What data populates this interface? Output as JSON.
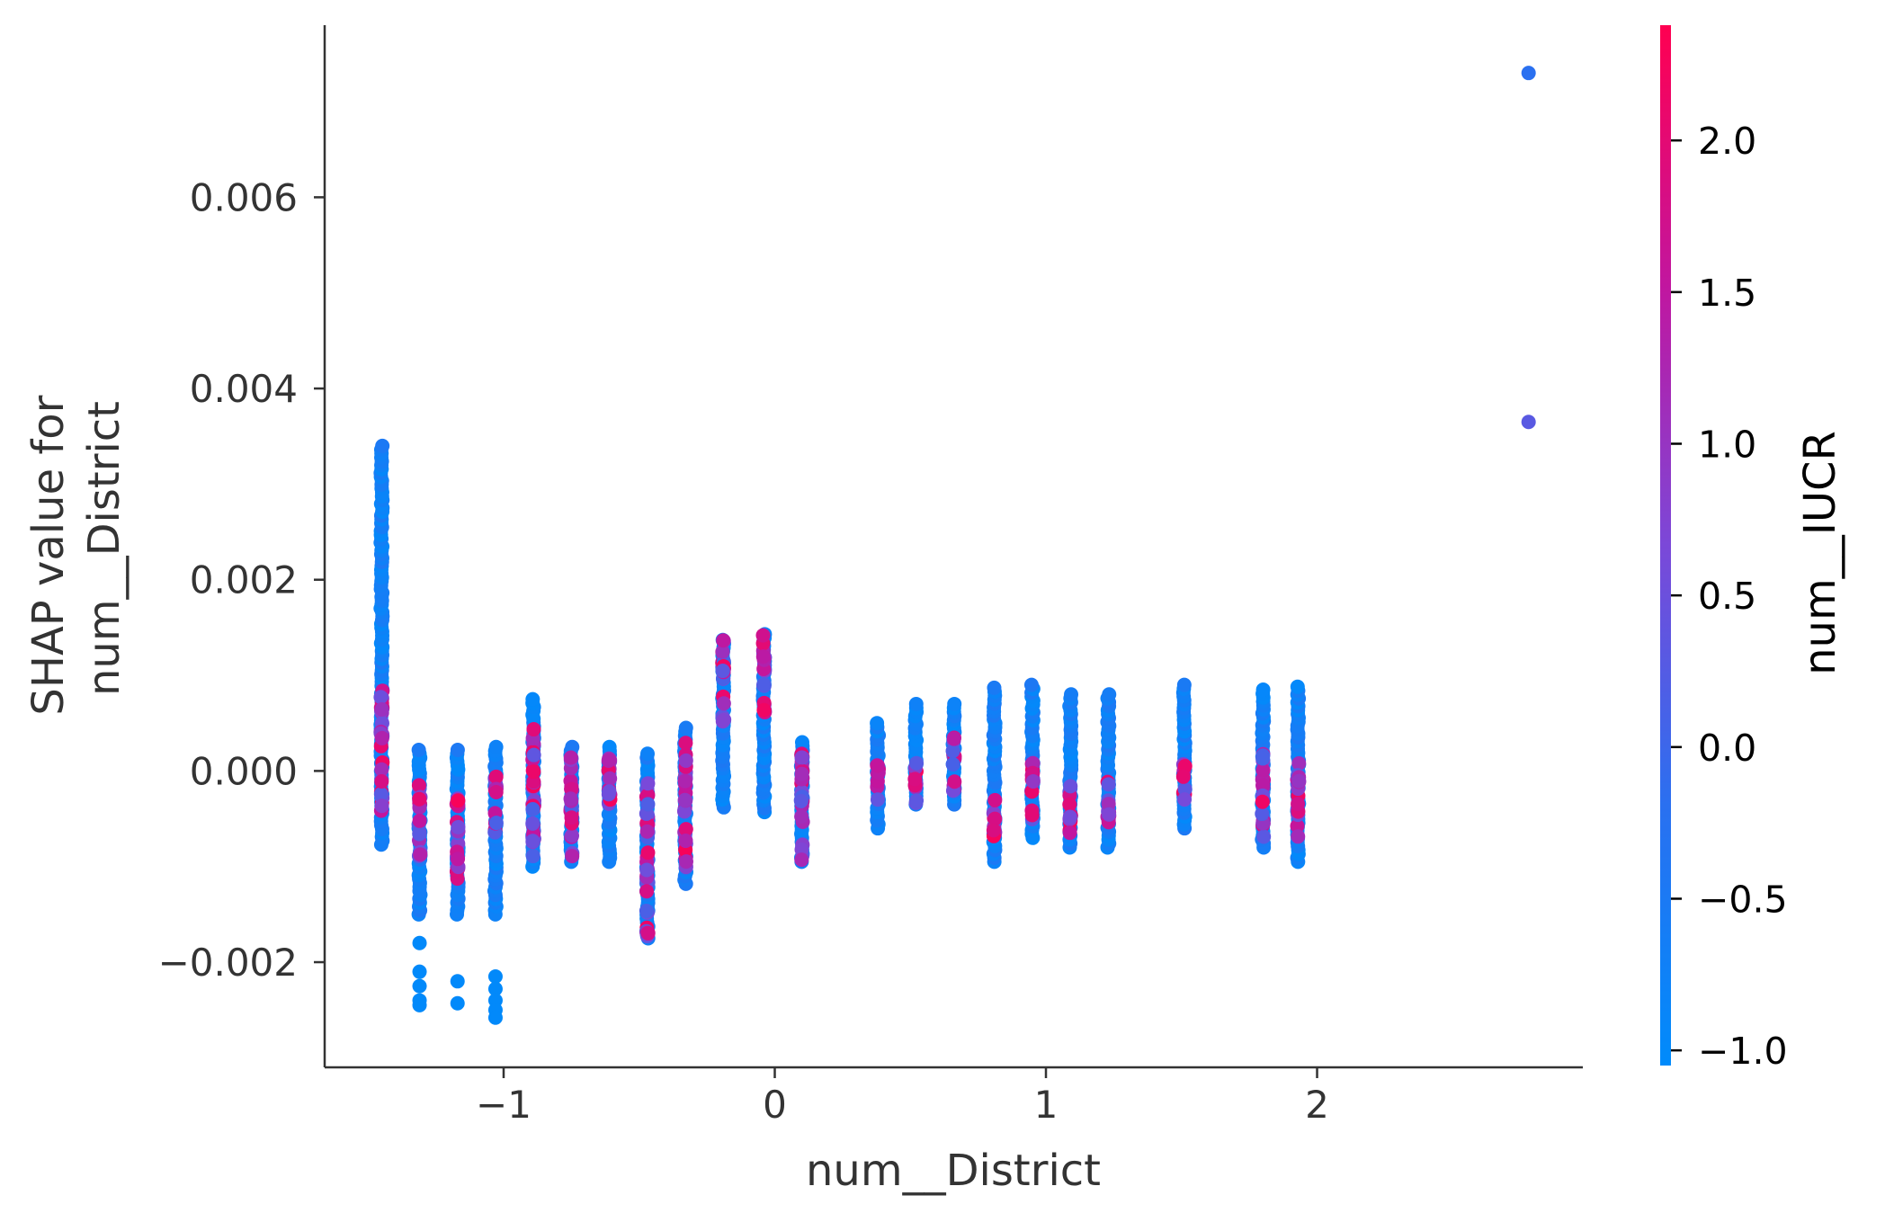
{
  "chart_data": {
    "type": "scatter",
    "xlabel": "num__District",
    "ylabel_lines": [
      "SHAP value for",
      "num__District"
    ],
    "xlim": [
      -1.66,
      2.98
    ],
    "ylim": [
      -0.0031,
      0.0078
    ],
    "x_ticks": [
      {
        "value": -1,
        "label": "−1"
      },
      {
        "value": 0,
        "label": "0"
      },
      {
        "value": 1,
        "label": "1"
      },
      {
        "value": 2,
        "label": "2"
      }
    ],
    "y_ticks": [
      {
        "value": -0.002,
        "label": "−0.002"
      },
      {
        "value": 0.0,
        "label": "0.000"
      },
      {
        "value": 0.002,
        "label": "0.002"
      },
      {
        "value": 0.004,
        "label": "0.004"
      },
      {
        "value": 0.006,
        "label": "0.006"
      }
    ],
    "colorbar": {
      "label": "num__IUCR",
      "range": [
        -1.05,
        2.38
      ],
      "ticks": [
        {
          "value": -1.0,
          "label": "−1.0"
        },
        {
          "value": -0.5,
          "label": "−0.5"
        },
        {
          "value": 0.0,
          "label": "0.0"
        },
        {
          "value": 0.5,
          "label": "0.5"
        },
        {
          "value": 1.0,
          "label": "1.0"
        },
        {
          "value": 1.5,
          "label": "1.5"
        },
        {
          "value": 2.0,
          "label": "2.0"
        }
      ],
      "colormap": [
        "#008bfb",
        "#2a70f0",
        "#7b48d8",
        "#c1169f",
        "#ff0051"
      ]
    },
    "columns": [
      {
        "x": -1.45,
        "ymin": -0.00077,
        "ymax": 0.0034,
        "hi_min": -0.00045,
        "hi_max": 0.0009
      },
      {
        "x": -1.31,
        "ymin": -0.0015,
        "ymax": 0.00022,
        "hi_min": -0.0009,
        "hi_max": -0.0001
      },
      {
        "x": -1.17,
        "ymin": -0.0015,
        "ymax": 0.00022,
        "hi_min": -0.0012,
        "hi_max": -0.0002
      },
      {
        "x": -1.03,
        "ymin": -0.0015,
        "ymax": 0.00025,
        "hi_min": -0.0007,
        "hi_max": 0.0
      },
      {
        "x": -0.89,
        "ymin": -0.001,
        "ymax": 0.00075,
        "hi_min": -0.001,
        "hi_max": 0.0005
      },
      {
        "x": -0.75,
        "ymin": -0.00095,
        "ymax": 0.00025,
        "hi_min": -0.0009,
        "hi_max": 0.0002
      },
      {
        "x": -0.61,
        "ymin": -0.00095,
        "ymax": 0.00025,
        "hi_min": -0.0005,
        "hi_max": 0.0002
      },
      {
        "x": -0.47,
        "ymin": -0.00175,
        "ymax": 0.00018,
        "hi_min": -0.00175,
        "hi_max": -0.0001
      },
      {
        "x": -0.33,
        "ymin": -0.00118,
        "ymax": 0.00045,
        "hi_min": -0.0011,
        "hi_max": 0.0003
      },
      {
        "x": -0.19,
        "ymin": -0.00038,
        "ymax": 0.00137,
        "hi_min": 0.0004,
        "hi_max": 0.00137
      },
      {
        "x": -0.04,
        "ymin": -0.00043,
        "ymax": 0.00143,
        "hi_min": 0.0006,
        "hi_max": 0.00143
      },
      {
        "x": 0.1,
        "ymin": -0.00095,
        "ymax": 0.0003,
        "hi_min": -0.00095,
        "hi_max": 0.0003
      },
      {
        "x": 0.38,
        "ymin": -0.0006,
        "ymax": 0.0005,
        "hi_min": -0.0003,
        "hi_max": 0.0001
      },
      {
        "x": 0.52,
        "ymin": -0.00035,
        "ymax": 0.0007,
        "hi_min": -0.00035,
        "hi_max": 0.0001
      },
      {
        "x": 0.66,
        "ymin": -0.00035,
        "ymax": 0.0007,
        "hi_min": -0.0003,
        "hi_max": 0.00035
      },
      {
        "x": 0.81,
        "ymin": -0.00095,
        "ymax": 0.00087,
        "hi_min": -0.0007,
        "hi_max": -0.0002
      },
      {
        "x": 0.95,
        "ymin": -0.0007,
        "ymax": 0.0009,
        "hi_min": -0.0006,
        "hi_max": 0.0001
      },
      {
        "x": 1.09,
        "ymin": -0.0008,
        "ymax": 0.0008,
        "hi_min": -0.0007,
        "hi_max": -0.0001
      },
      {
        "x": 1.23,
        "ymin": -0.0008,
        "ymax": 0.0008,
        "hi_min": -0.0006,
        "hi_max": -0.0001
      },
      {
        "x": 1.51,
        "ymin": -0.0006,
        "ymax": 0.0009,
        "hi_min": -0.0003,
        "hi_max": 0.0001
      },
      {
        "x": 1.8,
        "ymin": -0.0008,
        "ymax": 0.00085,
        "hi_min": -0.0007,
        "hi_max": 0.0002
      },
      {
        "x": 1.93,
        "ymin": -0.00095,
        "ymax": 0.00088,
        "hi_min": -0.0007,
        "hi_max": 0.0001
      }
    ],
    "extra_points": [
      {
        "x": 2.78,
        "y": 0.0073,
        "c": -0.2
      },
      {
        "x": 2.78,
        "y": 0.00365,
        "c": 0.3
      },
      {
        "x": -1.31,
        "y": -0.0018,
        "c": -1.0
      },
      {
        "x": -1.31,
        "y": -0.0021,
        "c": -1.0
      },
      {
        "x": -1.31,
        "y": -0.00225,
        "c": -1.0
      },
      {
        "x": -1.31,
        "y": -0.0024,
        "c": -1.0
      },
      {
        "x": -1.31,
        "y": -0.00245,
        "c": -1.0
      },
      {
        "x": -1.17,
        "y": -0.0022,
        "c": -1.0
      },
      {
        "x": -1.17,
        "y": -0.00243,
        "c": -1.0
      },
      {
        "x": -1.03,
        "y": -0.00215,
        "c": -1.0
      },
      {
        "x": -1.03,
        "y": -0.00228,
        "c": -1.0
      },
      {
        "x": -1.03,
        "y": -0.0024,
        "c": -1.0
      },
      {
        "x": -1.03,
        "y": -0.0025,
        "c": -1.0
      },
      {
        "x": -1.03,
        "y": -0.00258,
        "c": -1.0
      }
    ]
  }
}
